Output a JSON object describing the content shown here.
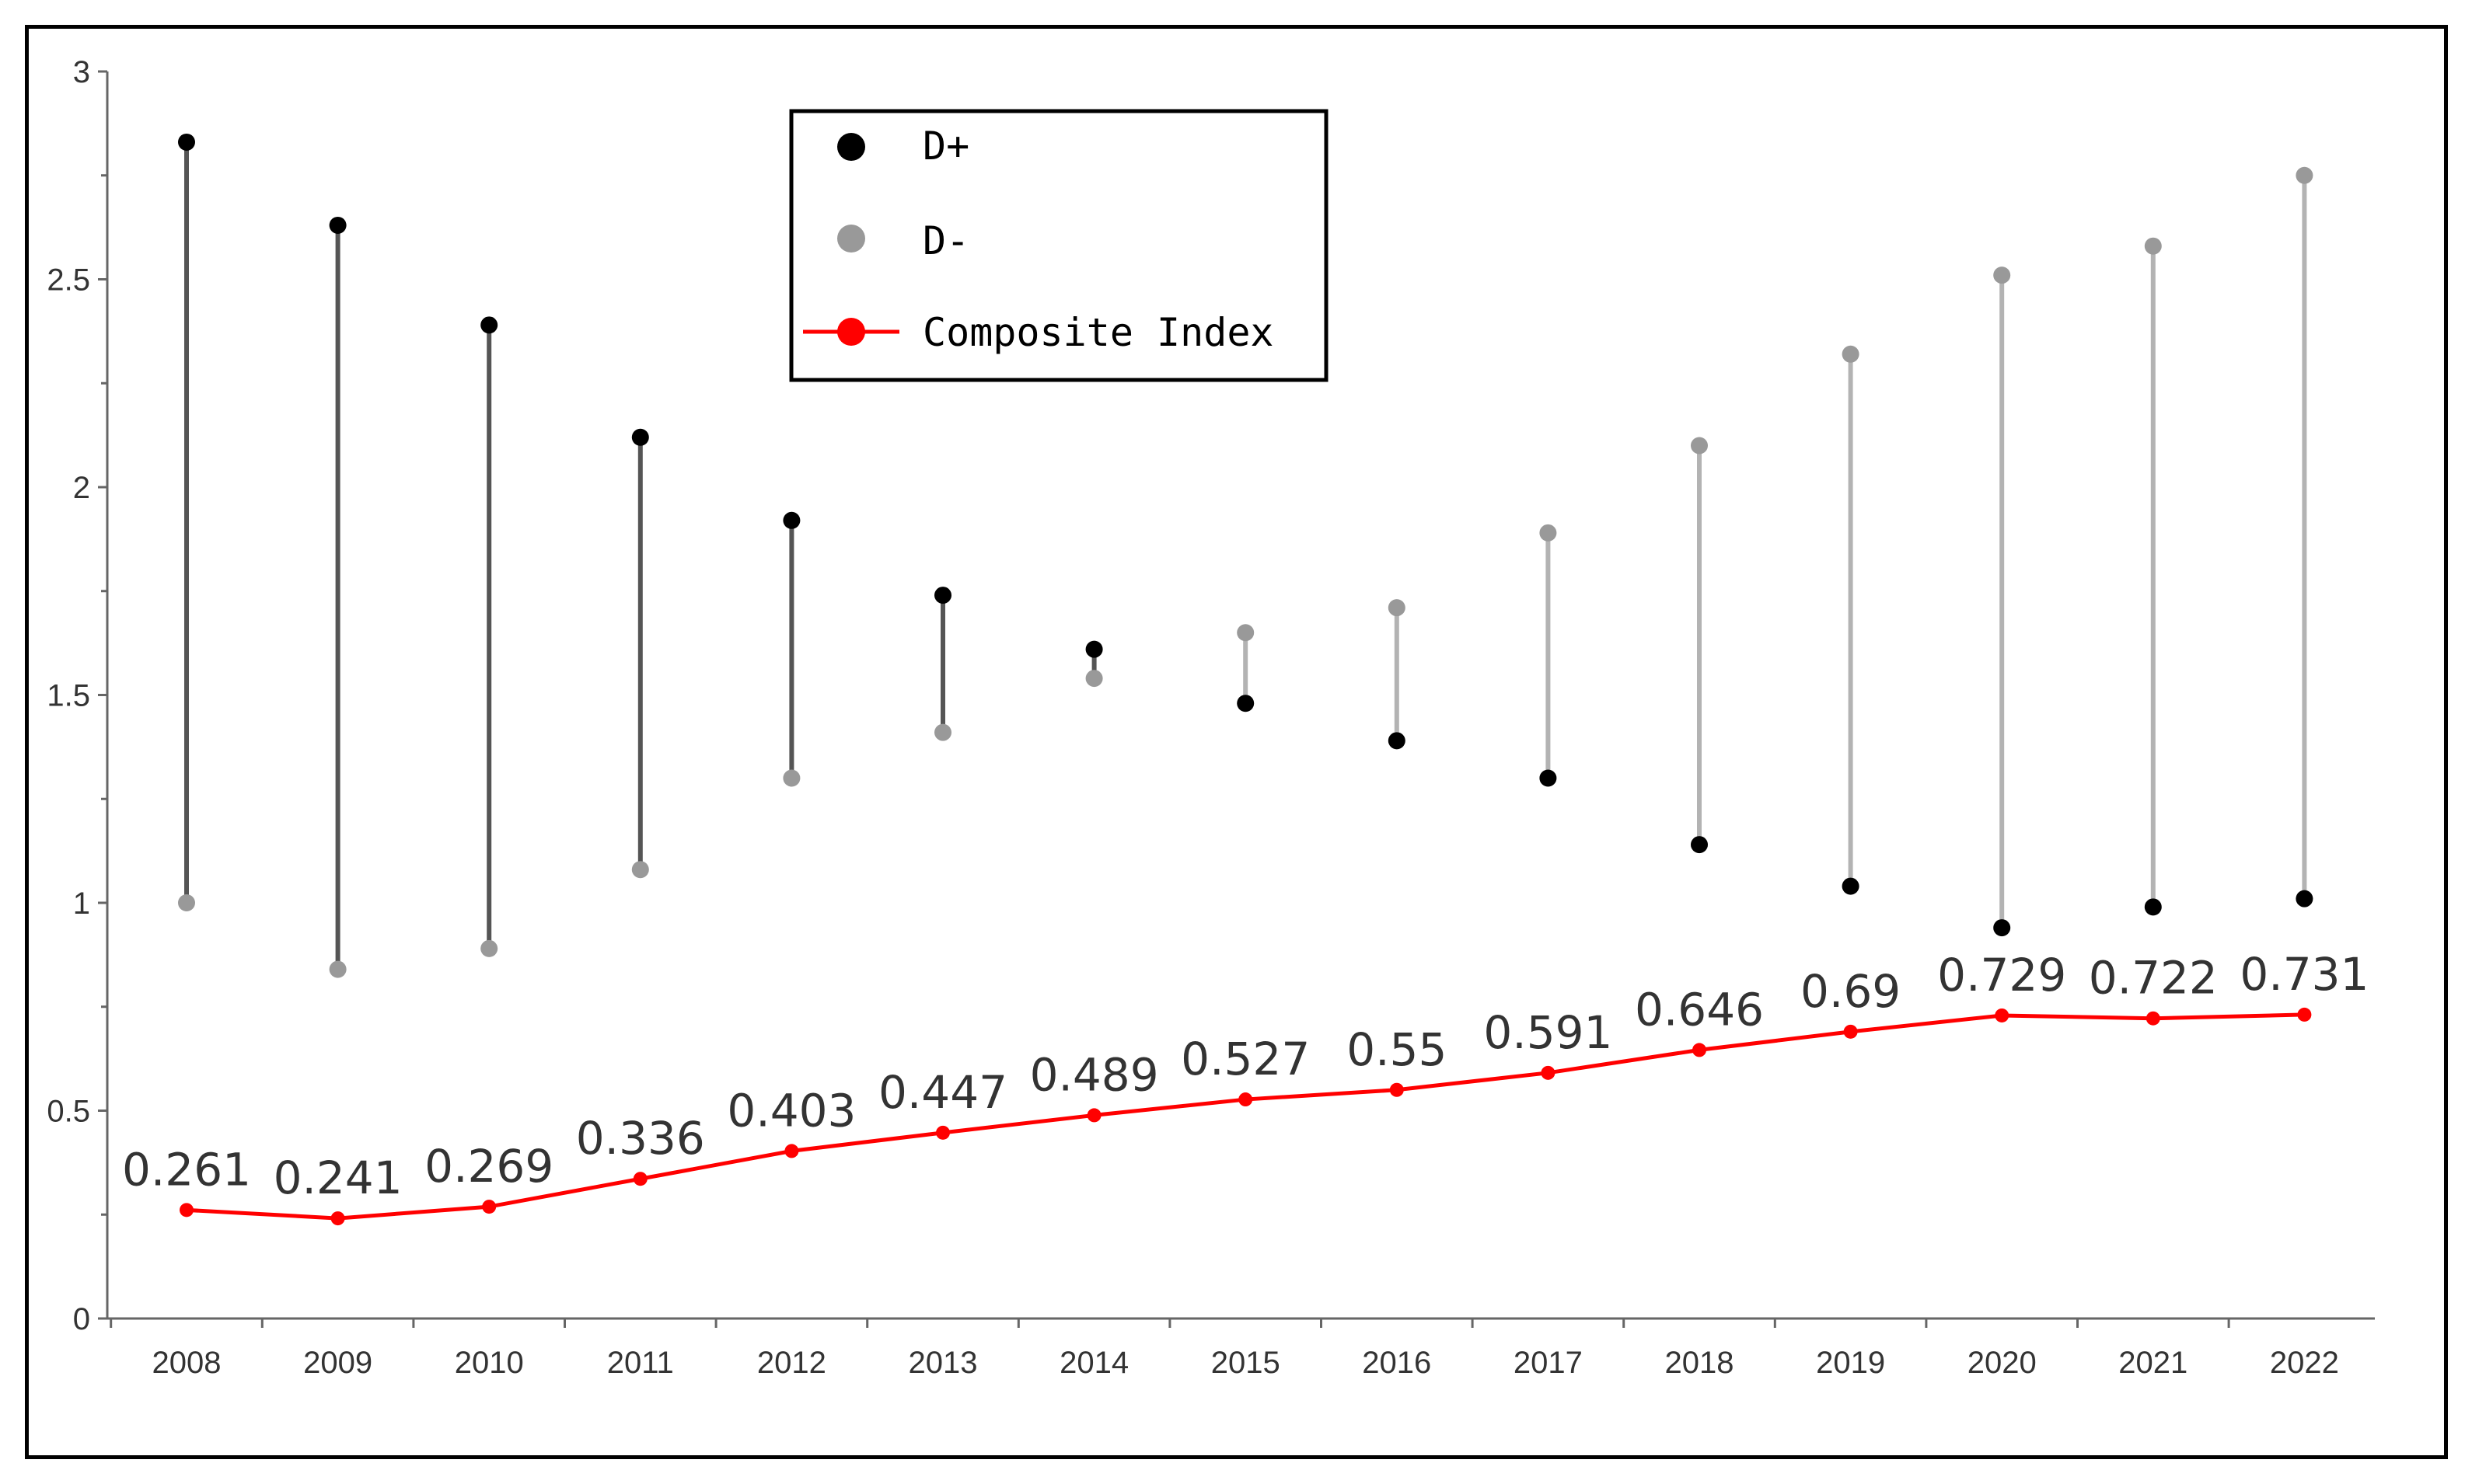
{
  "chart_data": {
    "type": "line",
    "x": [
      "2008",
      "2009",
      "2010",
      "2011",
      "2012",
      "2013",
      "2014",
      "2015",
      "2016",
      "2017",
      "2018",
      "2019",
      "2020",
      "2021",
      "2022"
    ],
    "ylim": [
      0,
      3
    ],
    "yticks": [
      "0",
      "0.5",
      "1",
      "1.5",
      "2",
      "2.5",
      "3"
    ],
    "ytick_values": [
      0,
      0.5,
      1,
      1.5,
      2,
      2.5,
      3
    ],
    "grid": false,
    "legend_position": "top-center",
    "series": [
      {
        "name": "D+",
        "color": "#000000",
        "values": [
          2.83,
          2.63,
          2.39,
          2.12,
          1.92,
          1.74,
          1.61,
          1.48,
          1.39,
          1.3,
          1.14,
          1.04,
          0.94,
          0.99,
          1.01
        ]
      },
      {
        "name": "D-",
        "color": "#999999",
        "values": [
          1.0,
          0.84,
          0.89,
          1.08,
          1.3,
          1.41,
          1.54,
          1.65,
          1.71,
          1.89,
          2.1,
          2.32,
          2.51,
          2.58,
          2.75
        ]
      },
      {
        "name": "Composite Index",
        "color": "#ff0000",
        "values": [
          0.261,
          0.241,
          0.269,
          0.336,
          0.403,
          0.447,
          0.489,
          0.527,
          0.55,
          0.591,
          0.646,
          0.69,
          0.729,
          0.722,
          0.731
        ],
        "labels": [
          "0.261",
          "0.241",
          "0.269",
          "0.336",
          "0.403",
          "0.447",
          "0.489",
          "0.527",
          "0.55",
          "0.591",
          "0.646",
          "0.69",
          "0.729",
          "0.722",
          "0.731"
        ]
      }
    ],
    "range_line_colors": {
      "dark": "#555555",
      "light": "#b3b3b3"
    }
  }
}
